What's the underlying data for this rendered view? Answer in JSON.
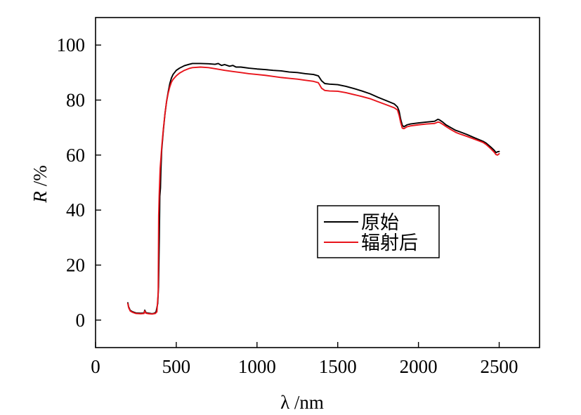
{
  "chart_data": {
    "type": "line",
    "title": "",
    "xlabel": "λ /nm",
    "ylabel": {
      "symbol": "R",
      "unit": "/%"
    },
    "xlim": [
      0,
      2750
    ],
    "ylim": [
      -10,
      110
    ],
    "xticks": [
      0,
      500,
      1000,
      1500,
      2000,
      2500
    ],
    "yticks": [
      0,
      20,
      40,
      60,
      80,
      100
    ],
    "grid": false,
    "legend": {
      "position": "center-right"
    },
    "series": [
      {
        "name": "原始",
        "color": "#000000",
        "x": [
          200,
          205,
          215,
          230,
          250,
          280,
          300,
          305,
          312,
          330,
          350,
          365,
          375,
          380,
          385,
          390,
          395,
          398,
          402,
          405,
          410,
          420,
          430,
          440,
          450,
          460,
          470,
          480,
          500,
          520,
          550,
          580,
          600,
          650,
          700,
          740,
          760,
          780,
          800,
          830,
          850,
          870,
          900,
          950,
          1000,
          1050,
          1100,
          1150,
          1200,
          1250,
          1300,
          1350,
          1380,
          1400,
          1420,
          1450,
          1500,
          1550,
          1600,
          1650,
          1700,
          1750,
          1800,
          1850,
          1870,
          1880,
          1890,
          1900,
          1910,
          1930,
          1950,
          2000,
          2050,
          2100,
          2120,
          2130,
          2150,
          2170,
          2200,
          2230,
          2250,
          2300,
          2350,
          2400,
          2420,
          2450,
          2470,
          2480,
          2490,
          2500
        ],
        "y": [
          6.3,
          4.8,
          3.5,
          3.0,
          2.6,
          2.5,
          2.6,
          3.6,
          2.7,
          2.5,
          2.3,
          2.5,
          3.0,
          4.5,
          6.0,
          12.0,
          30.0,
          45.0,
          48.0,
          55.0,
          62.0,
          69.0,
          75.0,
          79.5,
          83.0,
          86.0,
          88.0,
          89.3,
          90.8,
          91.6,
          92.5,
          93.0,
          93.3,
          93.3,
          93.2,
          93.0,
          93.3,
          92.6,
          92.9,
          92.3,
          92.6,
          92.0,
          92.0,
          91.6,
          91.3,
          91.1,
          90.8,
          90.6,
          90.2,
          90.0,
          89.6,
          89.3,
          88.8,
          87.0,
          86.0,
          85.8,
          85.6,
          85.0,
          84.2,
          83.3,
          82.3,
          81.0,
          79.8,
          78.6,
          77.5,
          76.0,
          73.0,
          70.8,
          70.3,
          71.0,
          71.3,
          71.7,
          72.0,
          72.3,
          73.0,
          72.8,
          72.0,
          71.0,
          70.0,
          69.0,
          68.6,
          67.5,
          66.2,
          65.0,
          64.3,
          62.8,
          61.7,
          60.9,
          61.2,
          61.3
        ]
      },
      {
        "name": "辐射后",
        "color": "#e8141b",
        "x": [
          200,
          205,
          215,
          230,
          250,
          280,
          300,
          305,
          312,
          330,
          350,
          370,
          380,
          388,
          391,
          394,
          400,
          410,
          420,
          430,
          440,
          450,
          460,
          470,
          480,
          500,
          520,
          550,
          580,
          600,
          650,
          700,
          750,
          800,
          850,
          900,
          950,
          1000,
          1050,
          1100,
          1150,
          1200,
          1250,
          1300,
          1350,
          1380,
          1400,
          1420,
          1450,
          1500,
          1550,
          1600,
          1650,
          1700,
          1750,
          1800,
          1850,
          1870,
          1880,
          1890,
          1900,
          1910,
          1930,
          1950,
          2000,
          2050,
          2100,
          2120,
          2130,
          2150,
          2170,
          2200,
          2230,
          2250,
          2300,
          2350,
          2400,
          2420,
          2450,
          2470,
          2480,
          2490,
          2500
        ],
        "y": [
          6.0,
          4.5,
          3.3,
          2.8,
          2.4,
          2.3,
          2.4,
          3.3,
          2.5,
          2.3,
          2.2,
          2.4,
          3.0,
          10.0,
          38.0,
          45.0,
          55.0,
          63.0,
          69.5,
          75.0,
          79.5,
          82.5,
          84.8,
          86.5,
          87.5,
          88.8,
          89.8,
          90.8,
          91.5,
          91.8,
          92.0,
          91.8,
          91.3,
          90.8,
          90.4,
          90.0,
          89.6,
          89.3,
          89.0,
          88.6,
          88.2,
          87.9,
          87.6,
          87.2,
          86.8,
          86.3,
          84.3,
          83.5,
          83.3,
          83.2,
          82.7,
          82.0,
          81.3,
          80.5,
          79.4,
          78.3,
          77.2,
          76.4,
          74.5,
          71.8,
          69.8,
          69.6,
          70.3,
          70.6,
          71.0,
          71.3,
          71.5,
          72.0,
          71.9,
          71.2,
          70.4,
          69.3,
          68.3,
          67.8,
          66.8,
          65.7,
          64.6,
          63.8,
          62.2,
          61.0,
          60.2,
          60.0,
          60.5
        ]
      }
    ]
  }
}
